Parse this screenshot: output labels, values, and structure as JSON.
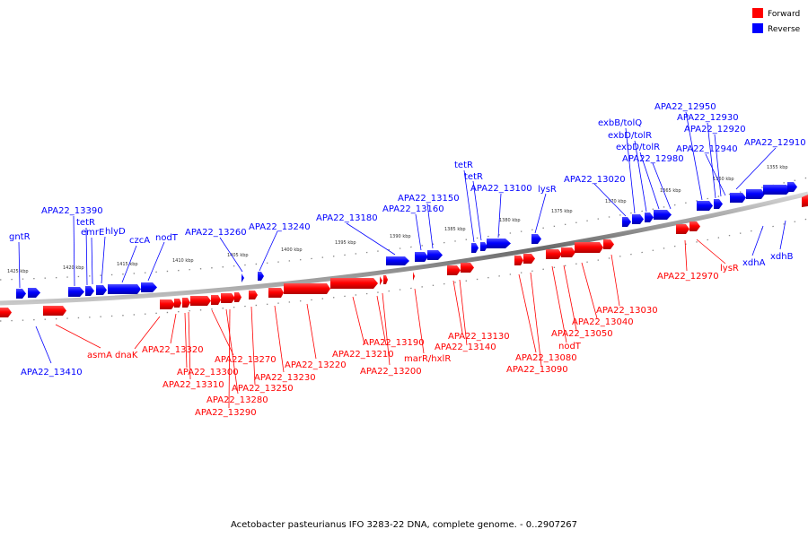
{
  "caption": "Acetobacter pasteurianus IFO 3283-22 DNA, complete genome. - 0..2907267",
  "legend": [
    {
      "label": "Forward",
      "color": "#ff0000"
    },
    {
      "label": "Reverse",
      "color": "#0000ff"
    }
  ],
  "scale_ticks": [
    "1425 kbp",
    "1420 kbp",
    "1415 kbp",
    "1410 kbp",
    "1405 kbp",
    "1400 kbp",
    "1395 kbp",
    "1390 kbp",
    "1385 kbp",
    "1380 kbp",
    "1375 kbp",
    "1370 kbp",
    "1365 kbp",
    "1360 kbp",
    "1355 kbp"
  ],
  "reverse_labels": [
    "gntR",
    "APA22_13390",
    "tetR",
    "emrE",
    "hlyD",
    "czcA",
    "nodT",
    "APA22_13260",
    "APA22_13240",
    "APA22_13180",
    "APA22_13160",
    "APA22_13150",
    "tetR",
    "tetR",
    "APA22_13100",
    "lysR",
    "APA22_13020",
    "exbB/tolQ",
    "exbD/tolR",
    "exbD/tolR",
    "APA22_12980",
    "APA22_12950",
    "APA22_12930",
    "APA22_12920",
    "APA22_12940",
    "APA22_12910",
    "xdhA",
    "xdhB",
    "APA22_13410"
  ],
  "forward_labels": [
    "asmA",
    "dnaK",
    "APA22_13320",
    "APA22_13300",
    "APA22_13310",
    "APA22_13270",
    "APA22_13280",
    "APA22_13290",
    "APA22_13250",
    "APA22_13230",
    "APA22_13220",
    "APA22_13190",
    "APA22_13210",
    "APA22_13200",
    "marR/hxlR",
    "APA22_13130",
    "APA22_13140",
    "APA22_13080",
    "APA22_13090",
    "nodT",
    "APA22_13050",
    "APA22_13040",
    "APA22_13030",
    "APA22_12970",
    "lysR"
  ]
}
